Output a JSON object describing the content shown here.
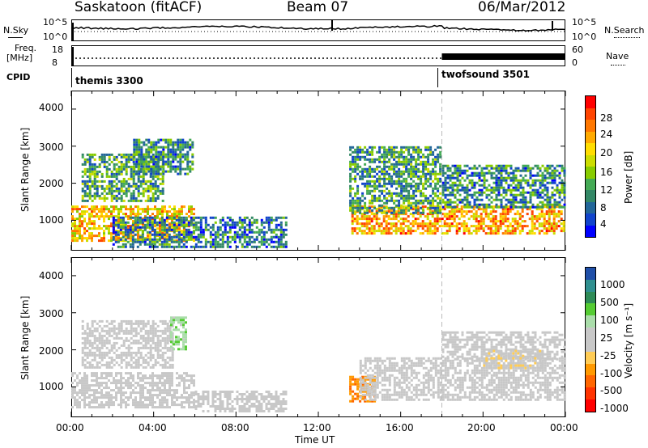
{
  "header": {
    "title": "Saskatoon (fitACF)",
    "beam": "Beam 07",
    "date": "06/Mar/2012"
  },
  "noise_panel": {
    "left_label": "N.Sky",
    "right_label": "N.Search",
    "left_ticks": [
      "10^5",
      "10^0"
    ],
    "right_ticks": [
      "10^5",
      "10^0"
    ]
  },
  "freq_panel": {
    "left_label_1": "Freq.",
    "left_label_2": "[MHz]",
    "right_label": "Nave",
    "left_ticks": [
      "18",
      "8"
    ],
    "right_ticks": [
      "60",
      "0"
    ]
  },
  "cpid_panel": {
    "label": "CPID",
    "segments": [
      "themis 3300",
      "twofsound 3501"
    ],
    "change_time": "18:00"
  },
  "x_axis": {
    "label": "Time UT",
    "ticks": [
      "00:00",
      "04:00",
      "08:00",
      "12:00",
      "16:00",
      "20:00",
      "00:00"
    ],
    "range_hours": [
      0,
      24
    ]
  },
  "power_panel": {
    "ylabel": "Slant Range [km]",
    "yticks": [
      "4000",
      "3000",
      "2000",
      "1000"
    ],
    "cbar_label": "Power [dB]",
    "cbar_ticks": [
      "28",
      "24",
      "20",
      "16",
      "12",
      "8",
      "4"
    ],
    "cbar_colors": [
      "#ff0000",
      "#ff4400",
      "#ff7700",
      "#ffaa00",
      "#ffdd00",
      "#ccdd00",
      "#88cc00",
      "#44aa55",
      "#338866",
      "#226699",
      "#1144cc",
      "#0000ff"
    ]
  },
  "velocity_panel": {
    "ylabel": "Slant Range [km]",
    "yticks": [
      "4000",
      "3000",
      "2000",
      "1000"
    ],
    "cbar_label": "Velocity [m s⁻¹]",
    "cbar_ticks": [
      "1000",
      "500",
      "100",
      "25",
      "-25",
      "-100",
      "-500",
      "-1000"
    ],
    "cbar_colors": [
      "#1f4fa8",
      "#2f8f8f",
      "#2e8b57",
      "#55cc33",
      "#aaddaa",
      "#c8c8c8",
      "#c8c8c8",
      "#ffcc55",
      "#ff9900",
      "#ff6600",
      "#ff3300",
      "#ff0000"
    ]
  },
  "chart_data": [
    {
      "type": "heatmap",
      "title": "Power [dB]",
      "xlabel": "Time UT",
      "ylabel": "Slant Range [km]",
      "xlim_hours": [
        0,
        24
      ],
      "ylim_km": [
        180,
        4500
      ],
      "clim": [
        0,
        30
      ],
      "regions": [
        {
          "t0": 0.0,
          "t1": 6.0,
          "r0": 400,
          "r1": 1400,
          "value": 20
        },
        {
          "t0": 0.5,
          "t1": 4.5,
          "r0": 1500,
          "r1": 2800,
          "value": 10
        },
        {
          "t0": 3.0,
          "t1": 6.0,
          "r0": 2200,
          "r1": 3200,
          "value": 8
        },
        {
          "t0": 2.0,
          "t1": 10.5,
          "r0": 250,
          "r1": 1100,
          "value": 7
        },
        {
          "t0": 13.6,
          "t1": 24.0,
          "r0": 600,
          "r1": 1400,
          "value": 22
        },
        {
          "t0": 13.5,
          "t1": 18.0,
          "r0": 1200,
          "r1": 3000,
          "value": 9
        },
        {
          "t0": 18.0,
          "t1": 24.0,
          "r0": 1300,
          "r1": 2500,
          "value": 8
        }
      ]
    },
    {
      "type": "heatmap",
      "title": "Velocity [m s⁻¹]",
      "xlabel": "Time UT",
      "ylabel": "Slant Range [km]",
      "xlim_hours": [
        0,
        24
      ],
      "ylim_km": [
        180,
        4500
      ],
      "clim": [
        -1000,
        1000
      ],
      "regions": [
        {
          "t0": 0.0,
          "t1": 6.0,
          "r0": 400,
          "r1": 1400,
          "value": 0
        },
        {
          "t0": 0.5,
          "t1": 5.0,
          "r0": 1500,
          "r1": 2800,
          "value": 0
        },
        {
          "t0": 4.8,
          "t1": 5.6,
          "r0": 2000,
          "r1": 2900,
          "value": 300
        },
        {
          "t0": 6.0,
          "t1": 10.5,
          "r0": 300,
          "r1": 900,
          "value": 0
        },
        {
          "t0": 13.5,
          "t1": 14.8,
          "r0": 600,
          "r1": 1300,
          "value": -500
        },
        {
          "t0": 14.0,
          "t1": 24.0,
          "r0": 600,
          "r1": 1800,
          "value": 0
        },
        {
          "t0": 18.0,
          "t1": 24.0,
          "r0": 1700,
          "r1": 2500,
          "value": 0
        },
        {
          "t0": 20.0,
          "t1": 23.0,
          "r0": 1500,
          "r1": 2000,
          "value": -100
        }
      ]
    }
  ]
}
